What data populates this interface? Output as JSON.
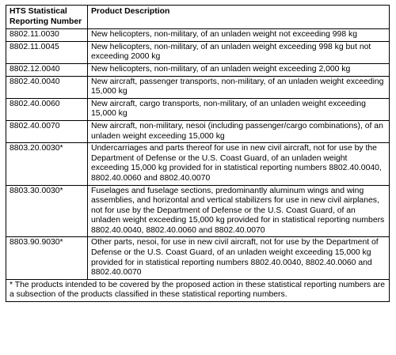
{
  "table": {
    "headers": [
      "HTS Statistical Reporting Number",
      "Product Description"
    ],
    "rows": [
      {
        "code": "8802.11.0030",
        "description": "New helicopters, non-military, of an unladen weight not exceeding 998 kg"
      },
      {
        "code": "8802.11.0045",
        "description": "New helicopters, non-military, of an unladen weight exceeding 998 kg but not exceeding 2000 kg"
      },
      {
        "code": "8802.12.0040",
        "description": "New helicopters, non-military, of an unladen weight exceeding 2,000 kg"
      },
      {
        "code": "8802.40.0040",
        "description": "New aircraft, passenger transports, non-military, of an unladen weight exceeding 15,000 kg"
      },
      {
        "code": "8802.40.0060",
        "description": "New aircraft, cargo transports, non-military, of an unladen weight exceeding 15,000 kg"
      },
      {
        "code": "8802.40.0070",
        "description": "New aircraft, non-military, nesoi (including passenger/cargo combinations), of an unladen weight exceeding 15,000 kg"
      },
      {
        "code": "8803.20.0030*",
        "description": "Undercarriages and parts thereof for use in new civil aircraft, not for use by the Department of Defense or the U.S. Coast Guard, of an unladen weight exceeding 15,000 kg provided for in statistical reporting numbers 8802.40.0040, 8802.40.0060 and 8802.40.0070"
      },
      {
        "code": "8803.30.0030*",
        "description": "Fuselages and fuselage sections, predominantly aluminum wings and wing assemblies, and horizontal and vertical stabilizers for use in new civil airplanes, not for use by the Department of Defense or the U.S. Coast Guard, of an unladen weight exceeding 15,000 kg provided for in statistical reporting numbers 8802.40.0040, 8802.40.0060 and 8802.40.0070"
      },
      {
        "code": "8803.90.9030*",
        "description": "Other parts, nesoi, for use in new civil aircraft, not for use by the Department of Defense or the U.S. Coast Guard, of an unladen weight exceeding 15,000 kg provided for in statistical reporting numbers 8802.40.0040, 8802.40.0060 and 8802.40.0070"
      }
    ],
    "footnote": "* The products intended to be covered by the proposed action in these statistical reporting numbers are a subsection of the products classified in these statistical reporting numbers."
  }
}
